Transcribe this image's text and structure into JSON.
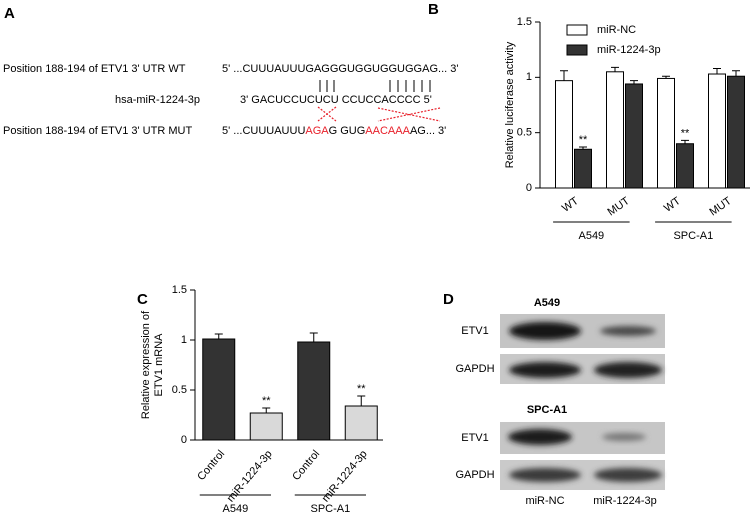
{
  "panel_a": {
    "label": "A",
    "rows": [
      {
        "name": "Position 188-194 of ETV1 3' UTR WT",
        "segments": [
          {
            "text": "5' ...CUUUAUUUGAGGGUGGUGGUGGAG... 3'",
            "color": "#000000"
          }
        ]
      },
      {
        "name": "hsa-miR-1224-3p",
        "segments": [
          {
            "text": "3' GACUCCUCUCU CCUCCACCCC 5'",
            "color": "#000000"
          }
        ]
      },
      {
        "name": "Position 188-194 of ETV1 3' UTR MUT",
        "segments": [
          {
            "text": "5' ...CUUUAUUU",
            "color": "#000000"
          },
          {
            "text": "AGA",
            "color": "#e8202a"
          },
          {
            "text": "G GUG",
            "color": "#000000"
          },
          {
            "text": "AACAAA",
            "color": "#e8202a"
          },
          {
            "text": "AG... 3'",
            "color": "#000000"
          }
        ]
      }
    ]
  },
  "chart_data": [
    {
      "type": "bar",
      "panel": "B",
      "ylabel": "Relative luciferase activity",
      "categories": [
        "WT",
        "MUT",
        "WT",
        "MUT"
      ],
      "group_labels": [
        "A549",
        "SPC-A1"
      ],
      "series": [
        {
          "name": "miR-NC",
          "color": "#ffffff",
          "values": [
            0.97,
            1.05,
            0.99,
            1.03
          ],
          "errors": [
            0.09,
            0.04,
            0.02,
            0.05
          ],
          "significance": [
            null,
            null,
            null,
            null
          ]
        },
        {
          "name": "miR-1224-3p",
          "color": "#333333",
          "values": [
            0.35,
            0.94,
            0.4,
            1.01
          ],
          "errors": [
            0.02,
            0.03,
            0.03,
            0.05
          ],
          "significance": [
            "**",
            null,
            "**",
            null
          ]
        }
      ],
      "ylim": [
        0,
        1.5
      ],
      "yticks": [
        0,
        0.5,
        1,
        1.5
      ],
      "legend": "upper left"
    },
    {
      "type": "bar",
      "panel": "C",
      "ylabel": [
        "Relative expression of",
        "ETV1 mRNA"
      ],
      "categories": [
        "Control",
        "miR-1224-3p",
        "Control",
        "miR-1224-3p"
      ],
      "group_labels": [
        "A549",
        "SPC-A1"
      ],
      "values": [
        1.01,
        0.27,
        0.98,
        0.34
      ],
      "errors": [
        0.05,
        0.05,
        0.09,
        0.1
      ],
      "colors": [
        "#333333",
        "#d9d9d9",
        "#333333",
        "#d9d9d9"
      ],
      "significance": [
        null,
        "**",
        null,
        "**"
      ],
      "ylim": [
        0,
        1.5
      ],
      "yticks": [
        0,
        0.5,
        1,
        1.5
      ]
    }
  ],
  "panel_d": {
    "label": "D",
    "blots": [
      {
        "title": "A549",
        "rows": [
          "ETV1",
          "GAPDH"
        ]
      },
      {
        "title": "SPC-A1",
        "rows": [
          "ETV1",
          "GAPDH"
        ]
      }
    ],
    "lanes": [
      "miR-NC",
      "miR-1224-3p"
    ]
  }
}
